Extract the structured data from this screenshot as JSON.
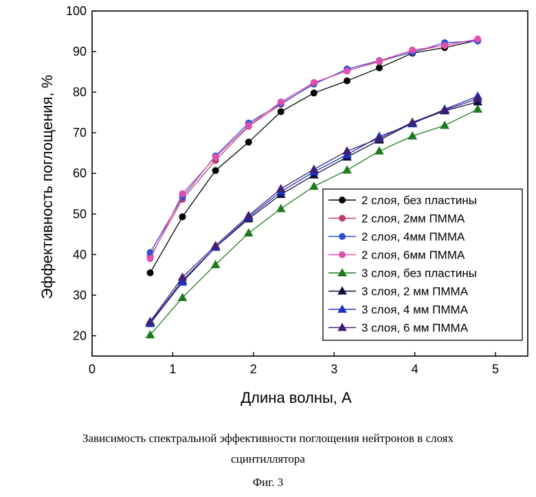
{
  "chart_data": {
    "type": "line",
    "title": "",
    "xlabel": "Длина волны, А",
    "ylabel": "Эффективность поглощения, %",
    "xlim": [
      0,
      5.4
    ],
    "ylim": [
      15,
      100
    ],
    "xticks": [
      "0",
      "1",
      "2",
      "3",
      "4",
      "5"
    ],
    "yticks": [
      "20",
      "30",
      "40",
      "50",
      "60",
      "70",
      "80",
      "90",
      "100"
    ],
    "grid": false,
    "legend_position": "right",
    "x": [
      0.72,
      1.12,
      1.53,
      1.94,
      2.34,
      2.75,
      3.16,
      3.56,
      3.97,
      4.37,
      4.78
    ],
    "series": [
      {
        "name": "2 слоя, без пластины",
        "marker": "circle",
        "color": "#000000",
        "values": [
          35.5,
          49.3,
          60.7,
          67.7,
          75.2,
          79.8,
          82.8,
          86.0,
          89.6,
          91.0,
          92.8
        ]
      },
      {
        "name": "2 слоя, 2мм ПММА",
        "marker": "circle",
        "color": "#c0406a",
        "values": [
          39.5,
          53.6,
          63.2,
          71.6,
          77.0,
          82.2,
          85.3,
          87.5,
          90.0,
          91.6,
          93.0
        ]
      },
      {
        "name": "2 слоя, 4мм ПММА",
        "marker": "circle",
        "color": "#3050d0",
        "values": [
          40.5,
          54.2,
          64.3,
          72.4,
          77.2,
          82.0,
          85.7,
          87.8,
          89.8,
          92.2,
          92.6
        ]
      },
      {
        "name": "2 слоя, 6мм ПММА",
        "marker": "circle",
        "color": "#e050b0",
        "values": [
          39.0,
          55.0,
          64.0,
          71.8,
          77.6,
          82.4,
          85.2,
          87.7,
          90.4,
          91.5,
          93.1
        ]
      },
      {
        "name": "3 слоя, без пластины",
        "marker": "triangle",
        "color": "#1f7a1f",
        "values": [
          20.2,
          29.4,
          37.5,
          45.3,
          51.3,
          56.8,
          60.8,
          65.5,
          69.2,
          71.8,
          75.8
        ]
      },
      {
        "name": "3 слоя, 2 мм ПММА",
        "marker": "triangle",
        "color": "#101040",
        "values": [
          23.2,
          33.6,
          41.8,
          48.8,
          54.8,
          59.6,
          64.0,
          68.2,
          72.4,
          75.4,
          77.6
        ]
      },
      {
        "name": "3 слоя, 4 мм ПММА",
        "marker": "triangle",
        "color": "#2030c0",
        "values": [
          23.0,
          33.2,
          41.8,
          49.2,
          55.5,
          60.4,
          64.6,
          69.1,
          72.2,
          75.8,
          79.0
        ]
      },
      {
        "name": "3 слоя, 6 мм ПММА",
        "marker": "triangle",
        "color": "#402070",
        "values": [
          23.5,
          34.4,
          42.2,
          49.6,
          56.2,
          61.0,
          65.5,
          68.6,
          72.6,
          75.6,
          78.4
        ]
      }
    ]
  },
  "caption": {
    "line1": "Зависимость спектральной эффективности поглощения нейтронов в слоях",
    "line2": "сцинтиллятора",
    "figure_label": "Фиг. 3"
  }
}
